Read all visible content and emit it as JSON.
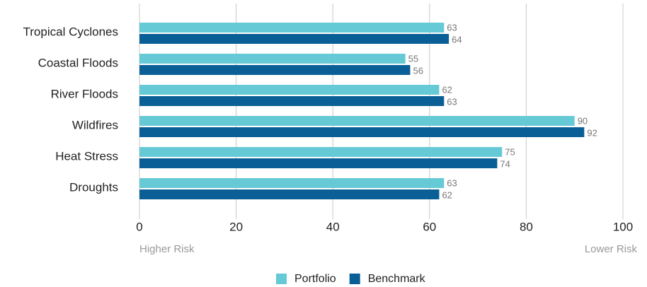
{
  "chart_data": {
    "type": "bar",
    "orientation": "horizontal",
    "categories": [
      "Tropical Cyclones",
      "Coastal Floods",
      "River Floods",
      "Wildfires",
      "Heat Stress",
      "Droughts"
    ],
    "series": [
      {
        "name": "Portfolio",
        "color": "#66c9d6",
        "values": [
          63,
          55,
          62,
          90,
          75,
          63
        ]
      },
      {
        "name": "Benchmark",
        "color": "#0a5f96",
        "values": [
          64,
          56,
          63,
          92,
          74,
          62
        ]
      }
    ],
    "xlim": [
      0,
      100
    ],
    "xticks": [
      0,
      20,
      40,
      60,
      80,
      100
    ],
    "grid": true,
    "annotations": {
      "left": "Higher Risk",
      "right": "Lower Risk"
    },
    "legend": "bottom"
  }
}
